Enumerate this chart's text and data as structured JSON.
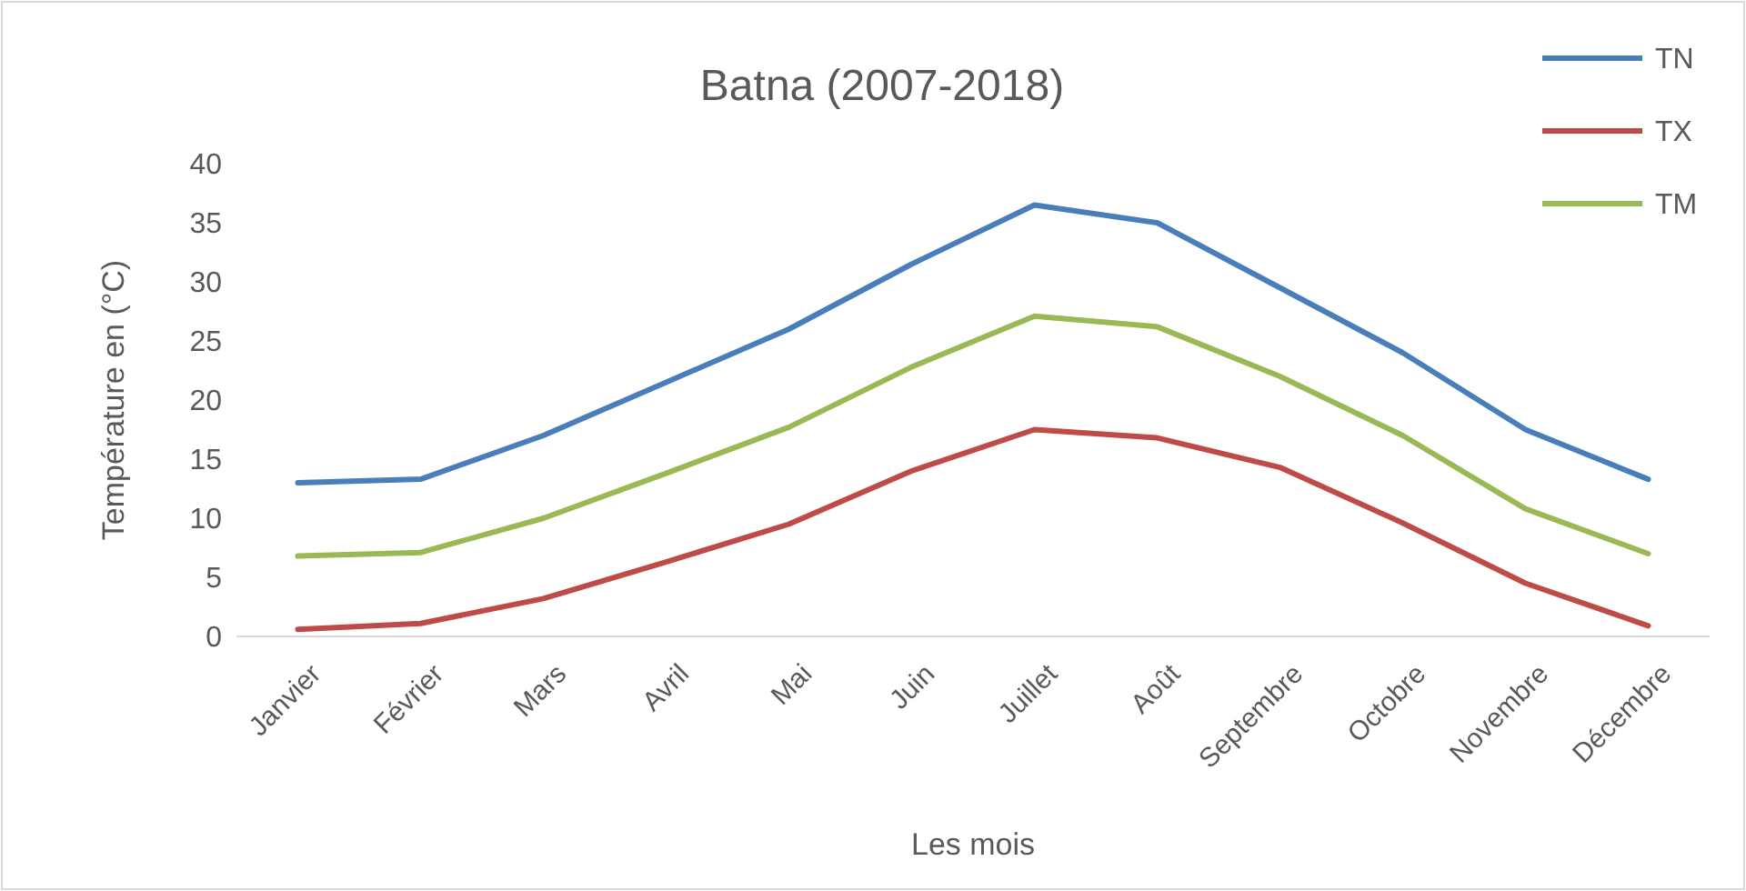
{
  "chart_data": {
    "type": "line",
    "title": "Batna (2007-2018)",
    "xlabel": "Les mois",
    "ylabel": "Température en (°C)",
    "categories": [
      "Janvier",
      "Février",
      "Mars",
      "Avril",
      "Mai",
      "Juin",
      "Juillet",
      "Août",
      "Septembre",
      "Octobre",
      "Novembre",
      "Décembre"
    ],
    "series": [
      {
        "name": "TN",
        "color": "#4a7ebb",
        "values": [
          13,
          13.3,
          17,
          21.5,
          26,
          31.5,
          36.5,
          35,
          29.5,
          24,
          17.5,
          13.3
        ]
      },
      {
        "name": "TX",
        "color": "#be4b48",
        "values": [
          0.6,
          1.1,
          3.2,
          6.3,
          9.5,
          14,
          17.5,
          16.8,
          14.3,
          9.6,
          4.5,
          0.9
        ]
      },
      {
        "name": "TM",
        "color": "#98b954",
        "values": [
          6.8,
          7.1,
          10,
          13.8,
          17.7,
          22.8,
          27.1,
          26.2,
          22,
          17,
          10.8,
          7
        ]
      }
    ],
    "ylim": [
      0,
      40
    ],
    "yticks": [
      0,
      5,
      10,
      15,
      20,
      25,
      30,
      35,
      40
    ],
    "grid": false,
    "legend": "top right",
    "marker": "none",
    "line_style": "solid"
  }
}
